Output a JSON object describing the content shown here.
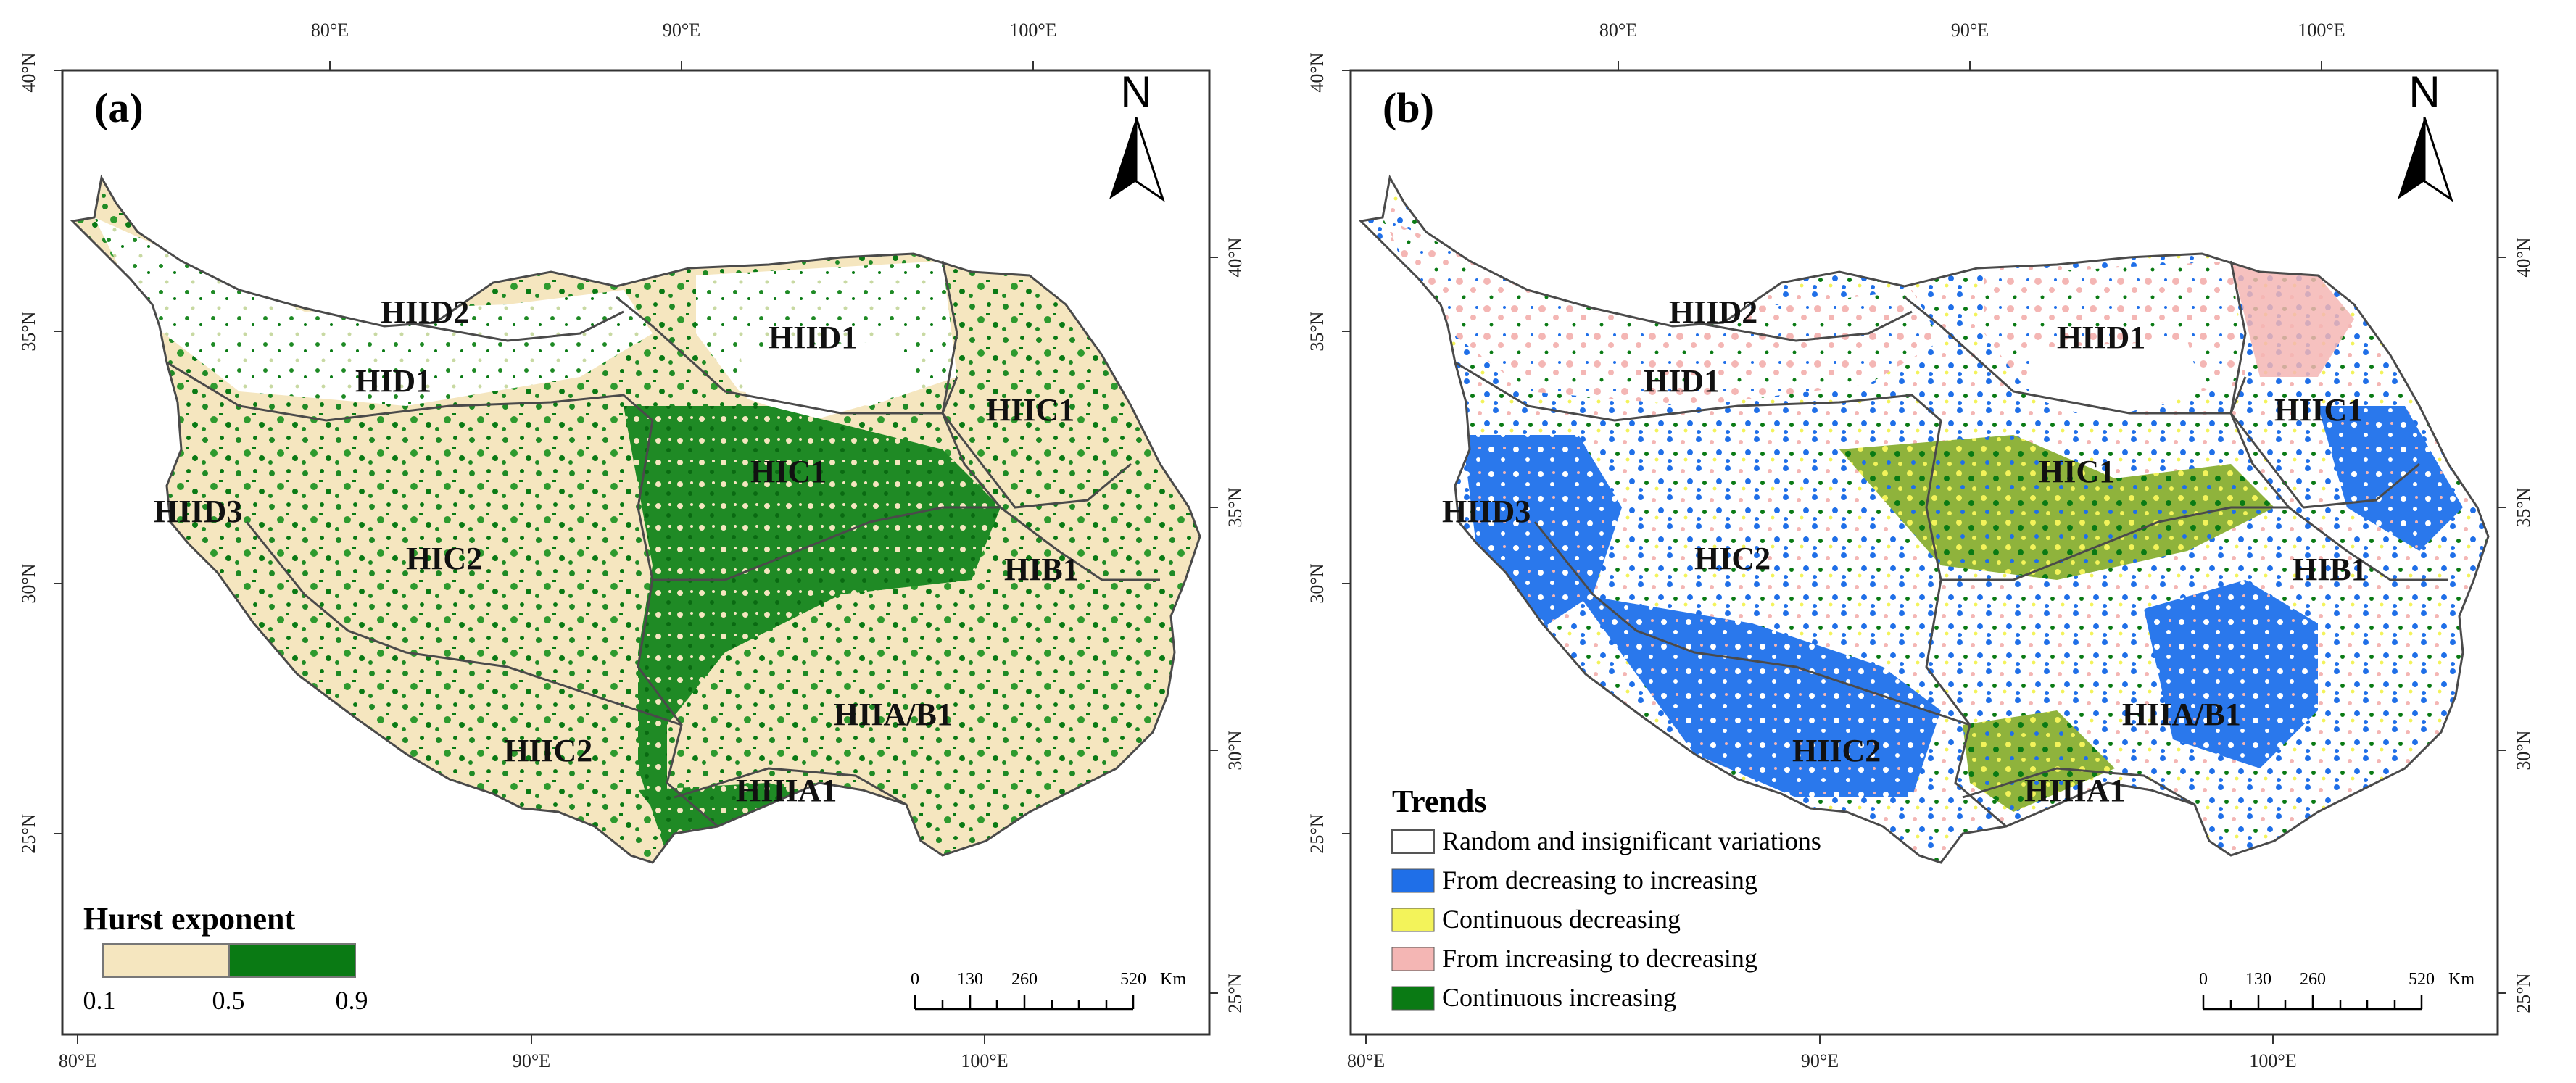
{
  "panels": [
    {
      "label": "(a)",
      "top_lon_labels": [
        "80°E",
        "90°E",
        "100°E"
      ],
      "bottom_lon_labels": [
        "80°E",
        "90°E",
        "100°E"
      ],
      "left_lat_labels": [
        "40°N",
        "35°N",
        "30°N",
        "25°N"
      ],
      "right_lat_labels": [
        "40°N",
        "35°N",
        "30°N",
        "25°N"
      ],
      "north": "N",
      "regions": [
        "HIID2",
        "HIID1",
        "HID1",
        "HIIC1",
        "HIC1",
        "HIID3",
        "HIC2",
        "HIB1",
        "HIIA/B1",
        "HIIC2",
        "HIIIA1"
      ],
      "legend": {
        "title": "Hurst exponent",
        "ticks": [
          "0.1",
          "0.5",
          "0.9"
        ],
        "colors": [
          "#f5e6bf",
          "#0a7a14"
        ]
      },
      "scale": {
        "labels": [
          "0",
          "130",
          "260",
          "520"
        ],
        "unit": "Km"
      }
    },
    {
      "label": "(b)",
      "top_lon_labels": [
        "80°E",
        "90°E",
        "100°E"
      ],
      "bottom_lon_labels": [
        "80°E",
        "90°E",
        "100°E"
      ],
      "left_lat_labels": [
        "40°N",
        "35°N",
        "30°N",
        "25°N"
      ],
      "right_lat_labels": [
        "40°N",
        "35°N",
        "30°N",
        "25°N"
      ],
      "north": "N",
      "regions": [
        "HIID2",
        "HIID1",
        "HID1",
        "HIIC1",
        "HIC1",
        "HIID3",
        "HIC2",
        "HIB1",
        "HIIA/B1",
        "HIIC2",
        "HIIIA1"
      ],
      "legend": {
        "title": "Trends",
        "items": [
          {
            "label": "Random and insignificant variations",
            "color": "#ffffff"
          },
          {
            "label": "From decreasing to increasing",
            "color": "#1f6fe8"
          },
          {
            "label": "Continuous decreasing",
            "color": "#f3f35a"
          },
          {
            "label": "From increasing to decreasing",
            "color": "#f4b6b4"
          },
          {
            "label": "Continuous increasing",
            "color": "#0a7a14"
          }
        ]
      },
      "scale": {
        "labels": [
          "0",
          "130",
          "260",
          "520"
        ],
        "unit": "Km"
      }
    }
  ]
}
